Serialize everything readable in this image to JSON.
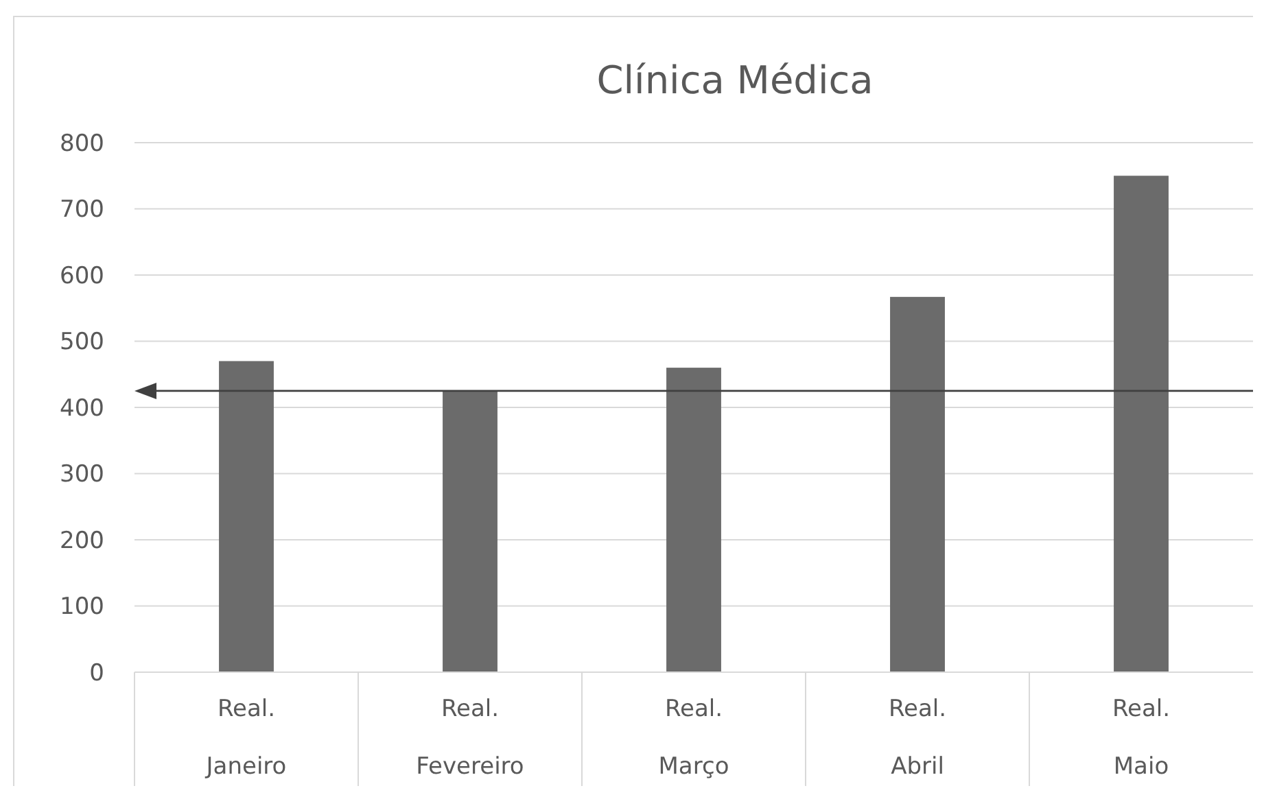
{
  "chart_data": {
    "type": "bar",
    "title": "Clínica Médica",
    "categories": [
      "Real. Janeiro",
      "Real. Fevereiro",
      "Real. Março",
      "Real. Abril",
      "Real. Maio"
    ],
    "values": [
      470,
      425,
      460,
      567,
      750
    ],
    "color": "#6b6b6b",
    "ylim": [
      0,
      800
    ],
    "yticks": [
      0,
      100,
      200,
      300,
      400,
      500,
      600,
      700,
      800
    ],
    "grid": "y",
    "ref_lines": [
      {
        "axis": "y",
        "value": 425,
        "color": "#404040"
      }
    ]
  }
}
